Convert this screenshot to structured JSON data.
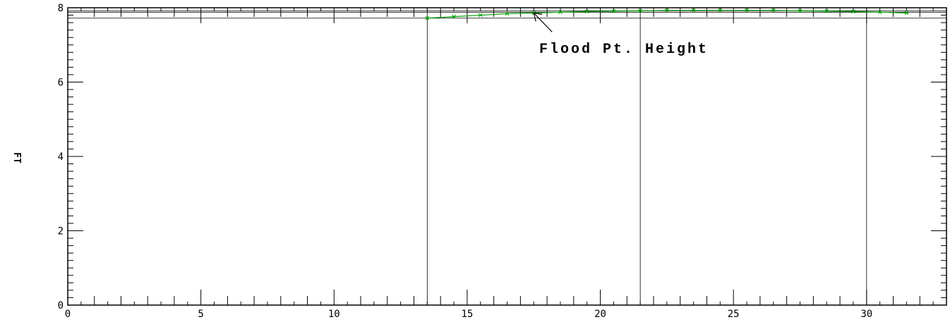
{
  "chart_data": {
    "type": "line",
    "title": "",
    "xlabel": "",
    "ylabel": "FT",
    "xlim": [
      0,
      33
    ],
    "ylim": [
      0,
      8
    ],
    "x_ticks": [
      "0",
      "5",
      "10",
      "15",
      "20",
      "25",
      "30"
    ],
    "y_ticks": [
      "0",
      "2",
      "4",
      "6",
      "8"
    ],
    "grid": false,
    "legend": "none",
    "series": [
      {
        "color": "#00a000",
        "marker": "x",
        "x": [
          13.5,
          14.5,
          15.5,
          16.5,
          17.5,
          18.5,
          19.5,
          20.5,
          21.5,
          22.5,
          23.5,
          24.5,
          25.5,
          26.5,
          27.5,
          28.5,
          29.5,
          30.5,
          31.5
        ],
        "y": [
          7.72,
          7.76,
          7.8,
          7.84,
          7.86,
          7.88,
          7.9,
          7.91,
          7.92,
          7.93,
          7.93,
          7.93,
          7.93,
          7.93,
          7.92,
          7.91,
          7.9,
          7.88,
          7.86
        ]
      }
    ],
    "reference_lines": {
      "horizontal": [
        7.72,
        7.88,
        7.92
      ],
      "vertical": [
        13.5,
        21.5,
        30
      ]
    },
    "annotations": [
      {
        "text": "Flood Pt. Height",
        "point": [
          17.5,
          7.86
        ]
      }
    ]
  }
}
